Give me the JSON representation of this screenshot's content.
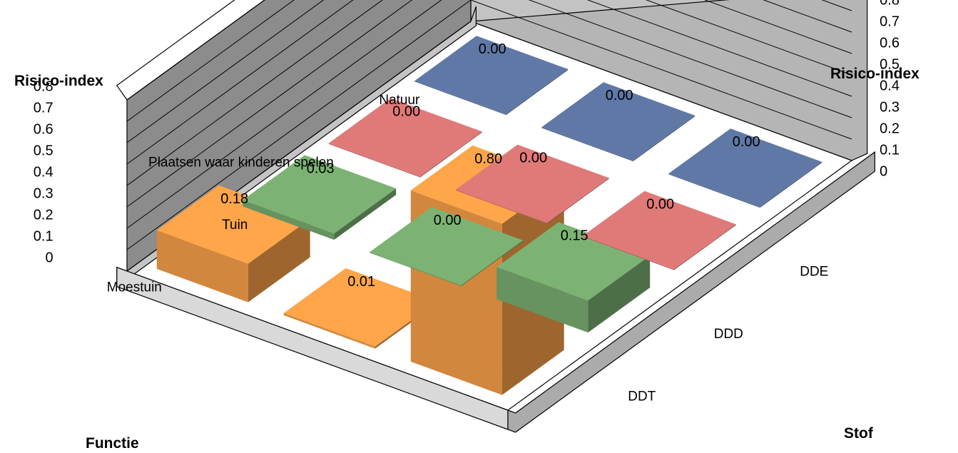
{
  "chart_data": {
    "type": "bar3d",
    "title": "",
    "zlabel_left": "Risico-index",
    "zlabel_right": "Risico-index",
    "function_axis_label": "Functie",
    "substance_axis_label": "Stof",
    "z_ticks": [
      "0",
      "0.1",
      "0.2",
      "0.3",
      "0.4",
      "0.5",
      "0.6",
      "0.7",
      "0.8"
    ],
    "zlim": [
      0,
      0.8
    ],
    "functions": [
      "Natuur",
      "Plaatsen waar kinderen spelen",
      "Tuin",
      "Moestuin"
    ],
    "substances": [
      "DDT",
      "DDD",
      "DDE"
    ],
    "series": [
      {
        "color": "#6078a6",
        "values": [
          0.0,
          0.0,
          0.0
        ],
        "labels": [
          "0.00",
          "0.00",
          "0.00"
        ]
      },
      {
        "color": "#e07a78",
        "values": [
          0.0,
          0.0,
          0.0
        ],
        "labels": [
          "0.00",
          "0.00",
          "0.00"
        ]
      },
      {
        "color": "#7cb374",
        "values": [
          0.03,
          0.0,
          0.15
        ],
        "labels": [
          "0.03",
          "0.00",
          "0.15"
        ]
      },
      {
        "color": "#ffa54a",
        "values": [
          0.18,
          0.01,
          0.8
        ],
        "labels": [
          "0.18",
          "0.01",
          "0.80"
        ]
      }
    ],
    "gridlines": true
  }
}
